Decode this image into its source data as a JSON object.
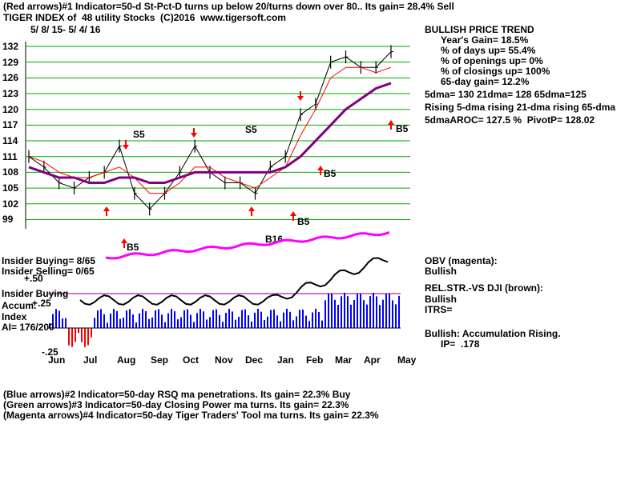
{
  "header": {
    "line1": "(Red arrows)#1 Indicator=50-d St-Pct-D turns up below 20/turns down over 80.. Its gain= 28.4% Sell",
    "line2": "TIGER INDEX of  48 utility Stocks  (C)2016  www.tigersoft.com",
    "date_range": "5/ 8/ 15- 5/ 4/ 16"
  },
  "footer": {
    "blue": "(Blue arrows)#2 Indicator=50-day RSQ ma penetrations. Its gain= 22.3% Buy",
    "green": "(Green arrows)#3 Indicator=50-day Closing Power ma turns. Its gain= 22.3%",
    "magenta": "(Magenta arrows)#4 Indicator=50-day Tiger Traders' Tool ma turns. Its gain= 22.3%"
  },
  "right_panel": {
    "title": "BULLISH PRICE TREND",
    "lines": [
      "Year's Gain= 18.5%",
      "% of days up= 55.4%",
      "% of openings up= 0%",
      "% of closings up= 100%",
      "65-day gain= 12.2%"
    ],
    "ma_line": "5dma= 130 21dma= 128 65dma=125",
    "rising_line": "Rising 5-dma rising 21-dma rising 65-dma",
    "aroc_line": "5dmaAROC= 127.5 %  PivotP= 128.02",
    "obv_title": "OBV (magenta):",
    "obv_status": "Bullish",
    "relstr_title": "REL.STR.-VS DJI (brown):",
    "relstr_status": "Bullish",
    "itrs": "ITRS=",
    "accum_status": "Bullish: Accumulation Rising.",
    "ip": "IP=  .178"
  },
  "left_labels": {
    "insider_buying_count": "Insider Buying= 8/65",
    "insider_selling_count": "Insider Selling= 0/65",
    "plus50": "+.50",
    "insider_buying": "Insider Buying",
    "accum": "Accum.",
    "plus25": "+.25",
    "index": "Index",
    "ai": "AI= 176/200",
    "minus25": "-.25"
  },
  "colors": {
    "price_bars": "#000000",
    "ma21": "#ff0000",
    "ma65": "#800080",
    "obv": "#ff00ff",
    "grid": "#00aa00",
    "arrow_red": "#ff0000",
    "accum_bars": "#0000ff",
    "dist_bars": "#ff0000"
  },
  "chart_data": {
    "type": "line",
    "title": "TIGER INDEX of 48 utility Stocks",
    "ylim": [
      98,
      132
    ],
    "y_ticks": [
      132,
      129,
      126,
      123,
      120,
      117,
      114,
      111,
      108,
      105,
      102,
      99
    ],
    "x_tick_labels": [
      "Jun",
      "Jul",
      "Aug",
      "Sep",
      "Oct",
      "Nov",
      "Dec",
      "Jan",
      "Feb",
      "Mar",
      "Apr",
      "May"
    ],
    "series": [
      {
        "name": "Price (close)",
        "x": [
          "May",
          "Jun",
          "Jun",
          "Jul",
          "Jul",
          "Aug",
          "Aug",
          "Aug",
          "Sep",
          "Sep",
          "Oct",
          "Oct",
          "Nov",
          "Nov",
          "Dec",
          "Dec",
          "Jan",
          "Jan",
          "Feb",
          "Feb",
          "Mar",
          "Mar",
          "Apr",
          "Apr",
          "May"
        ],
        "values": [
          111,
          109,
          106,
          105,
          107,
          108,
          113,
          104,
          101,
          104,
          108,
          113,
          108,
          106,
          106,
          104,
          109,
          111,
          119,
          121,
          129,
          130,
          128,
          128,
          131
        ]
      },
      {
        "name": "21-dma",
        "values": [
          111,
          110,
          108,
          107,
          107,
          108,
          109,
          107,
          104,
          104,
          106,
          109,
          109,
          107,
          106,
          105,
          107,
          109,
          115,
          120,
          126,
          128,
          128,
          127,
          128
        ]
      },
      {
        "name": "65-dma",
        "values": [
          109,
          108,
          107,
          107,
          106,
          106,
          107,
          107,
          106,
          106,
          107,
          108,
          108,
          108,
          108,
          108,
          108,
          109,
          111,
          114,
          117,
          120,
          122,
          124,
          125
        ]
      }
    ],
    "signals": [
      {
        "label": "S5",
        "month": "Aug"
      },
      {
        "label": "S5",
        "month": "Dec"
      },
      {
        "label": "B5",
        "month": "Aug"
      },
      {
        "label": "B16",
        "month": "Dec"
      },
      {
        "label": "B5",
        "month": "Jan"
      },
      {
        "label": "B5",
        "month": "Feb"
      },
      {
        "label": "B5",
        "month": "Apr"
      }
    ]
  }
}
